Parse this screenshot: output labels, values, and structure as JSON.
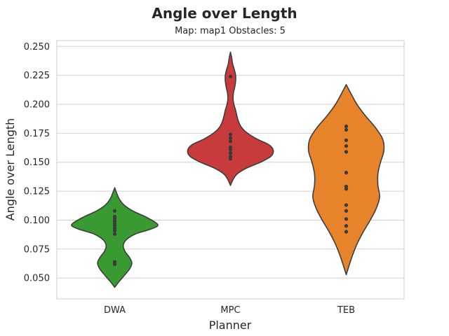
{
  "chart_data": {
    "type": "violin",
    "title": "Angle over Length",
    "subtitle": "Map: map1 Obstacles: 5",
    "xlabel": "Planner",
    "ylabel": "Angle over Length",
    "categories": [
      "DWA",
      "MPC",
      "TEB"
    ],
    "ylim": [
      0.032,
      0.255
    ],
    "yticks": [
      0.05,
      0.075,
      0.1,
      0.125,
      0.15,
      0.175,
      0.2,
      0.225,
      0.25
    ],
    "ytick_labels": [
      "0.050",
      "0.075",
      "0.100",
      "0.125",
      "0.150",
      "0.175",
      "0.200",
      "0.225",
      "0.250"
    ],
    "grid": true,
    "series": [
      {
        "category": "DWA",
        "color": "#3a9a32",
        "points": [
          0.062,
          0.064,
          0.088,
          0.091,
          0.093,
          0.095,
          0.097,
          0.099,
          0.101,
          0.103,
          0.108
        ],
        "violin_profile": [
          [
            0.042,
            0.0
          ],
          [
            0.046,
            0.08
          ],
          [
            0.052,
            0.22
          ],
          [
            0.058,
            0.35
          ],
          [
            0.063,
            0.4
          ],
          [
            0.068,
            0.34
          ],
          [
            0.073,
            0.24
          ],
          [
            0.078,
            0.2
          ],
          [
            0.083,
            0.27
          ],
          [
            0.088,
            0.48
          ],
          [
            0.092,
            0.82
          ],
          [
            0.095,
            1.0
          ],
          [
            0.098,
            0.95
          ],
          [
            0.103,
            0.71
          ],
          [
            0.108,
            0.42
          ],
          [
            0.113,
            0.22
          ],
          [
            0.118,
            0.11
          ],
          [
            0.123,
            0.05
          ],
          [
            0.128,
            0.0
          ]
        ]
      },
      {
        "category": "MPC",
        "color": "#c83b3c",
        "points": [
          0.153,
          0.155,
          0.158,
          0.161,
          0.163,
          0.168,
          0.171,
          0.174,
          0.224
        ],
        "violin_profile": [
          [
            0.13,
            0.0
          ],
          [
            0.135,
            0.06
          ],
          [
            0.14,
            0.16
          ],
          [
            0.145,
            0.38
          ],
          [
            0.15,
            0.7
          ],
          [
            0.155,
            0.94
          ],
          [
            0.16,
            1.0
          ],
          [
            0.165,
            0.9
          ],
          [
            0.17,
            0.62
          ],
          [
            0.175,
            0.4
          ],
          [
            0.18,
            0.26
          ],
          [
            0.185,
            0.19
          ],
          [
            0.19,
            0.15
          ],
          [
            0.195,
            0.12
          ],
          [
            0.2,
            0.08
          ],
          [
            0.205,
            0.06
          ],
          [
            0.21,
            0.07
          ],
          [
            0.215,
            0.1
          ],
          [
            0.22,
            0.12
          ],
          [
            0.225,
            0.12
          ],
          [
            0.23,
            0.09
          ],
          [
            0.235,
            0.05
          ],
          [
            0.24,
            0.03
          ],
          [
            0.245,
            0.0
          ]
        ]
      },
      {
        "category": "TEB",
        "color": "#e6832b",
        "points": [
          0.09,
          0.095,
          0.101,
          0.108,
          0.113,
          0.127,
          0.129,
          0.141,
          0.159,
          0.164,
          0.169,
          0.178,
          0.181
        ],
        "violin_profile": [
          [
            0.053,
            0.0
          ],
          [
            0.06,
            0.06
          ],
          [
            0.07,
            0.15
          ],
          [
            0.08,
            0.26
          ],
          [
            0.09,
            0.4
          ],
          [
            0.1,
            0.56
          ],
          [
            0.11,
            0.7
          ],
          [
            0.12,
            0.78
          ],
          [
            0.13,
            0.74
          ],
          [
            0.14,
            0.74
          ],
          [
            0.15,
            0.8
          ],
          [
            0.16,
            0.88
          ],
          [
            0.17,
            0.85
          ],
          [
            0.18,
            0.68
          ],
          [
            0.19,
            0.45
          ],
          [
            0.2,
            0.25
          ],
          [
            0.21,
            0.1
          ],
          [
            0.217,
            0.0
          ]
        ]
      }
    ]
  }
}
